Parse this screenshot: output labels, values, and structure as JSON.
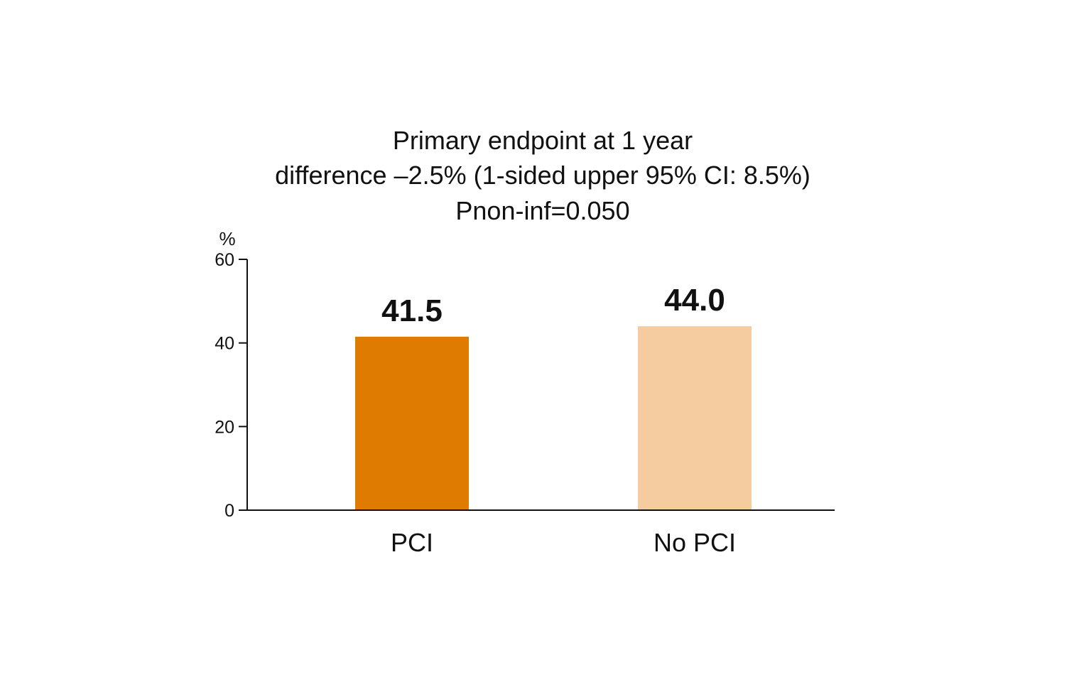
{
  "chart_data": {
    "type": "bar",
    "title": "Primary endpoint at 1 year",
    "subtitle_lines": [
      "difference –2.5% (1-sided upper 95% CI: 8.5%)",
      "Pnon-inf=0.050"
    ],
    "ylabel": "%",
    "xlabel": "",
    "categories": [
      "PCI",
      "No PCI"
    ],
    "values": [
      41.5,
      44.0
    ],
    "value_labels": [
      "41.5",
      "44.0"
    ],
    "colors": [
      "#df7c00",
      "#f5cca0"
    ],
    "ylim": [
      0,
      60
    ],
    "yticks": [
      0,
      20,
      40,
      60
    ],
    "ytick_labels": [
      "0",
      "20",
      "40",
      "60"
    ],
    "grid": false,
    "legend": "none"
  }
}
